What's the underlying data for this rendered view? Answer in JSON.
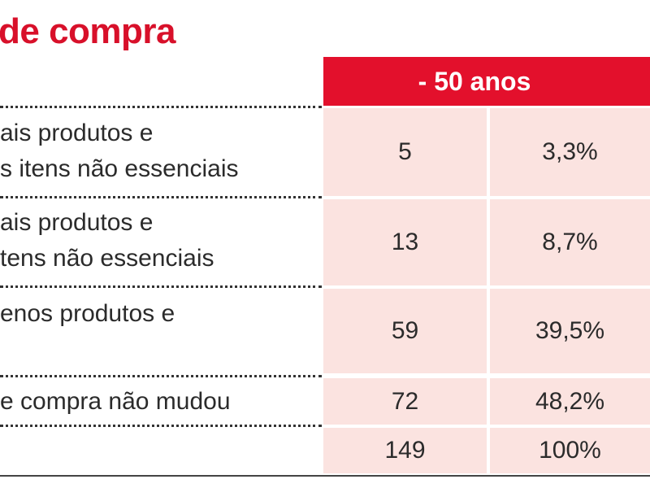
{
  "title": "de compra",
  "table": {
    "column_header": "- 50 anos",
    "rows": [
      {
        "label_lines": [
          "ais produtos e",
          "s itens não essenciais"
        ],
        "count": "5",
        "percent": "3,3%"
      },
      {
        "label_lines": [
          "ais produtos e",
          "tens não essenciais"
        ],
        "count": "13",
        "percent": "8,7%"
      },
      {
        "label_lines": [
          "enos produtos e",
          ""
        ],
        "count": "59",
        "percent": "39,5%"
      },
      {
        "label_lines": [
          "e compra não mudou"
        ],
        "count": "72",
        "percent": "48,2%"
      },
      {
        "label_lines": [
          ""
        ],
        "count": "149",
        "percent": "100%"
      }
    ]
  },
  "colors": {
    "title": "#d8102a",
    "header_background": "#e3102c",
    "cell_background": "#fbe3e0"
  }
}
